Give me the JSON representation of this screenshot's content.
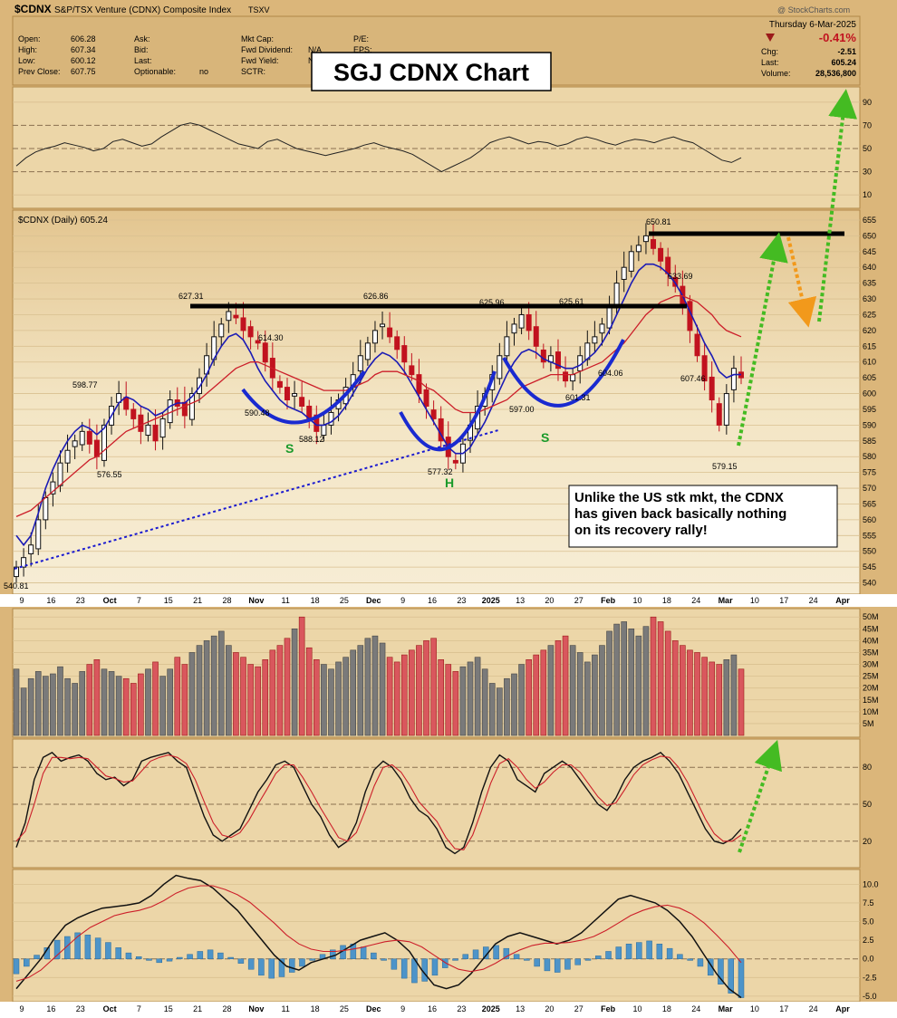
{
  "header": {
    "symbol": "$CDNX",
    "name": "S&P/TSX Venture (CDNX) Composite Index",
    "exchange": "TSXV",
    "watermark": "@ StockCharts.com",
    "date": "Thursday  6-Mar-2025",
    "change_pct": "-0.41%",
    "fields": [
      {
        "label": "Open:",
        "value": "606.28"
      },
      {
        "label": "High:",
        "value": "607.34"
      },
      {
        "label": "Low:",
        "value": "600.12"
      },
      {
        "label": "Prev Close:",
        "value": "607.75"
      }
    ],
    "fields2": [
      {
        "label": "Ask:",
        "value": ""
      },
      {
        "label": "Bid:",
        "value": ""
      },
      {
        "label": "Last:",
        "value": ""
      },
      {
        "label": "Optionable:",
        "value": "no"
      }
    ],
    "fields3": [
      {
        "label": "Mkt Cap:",
        "value": ""
      },
      {
        "label": "Fwd Dividend:",
        "value": "N/A"
      },
      {
        "label": "Fwd Yield:",
        "value": "N/A"
      },
      {
        "label": "SCTR:",
        "value": ""
      }
    ],
    "fields4": [
      {
        "label": "P/E:",
        "value": ""
      },
      {
        "label": "EPS:",
        "value": ""
      }
    ],
    "right_fields": [
      {
        "label": "Chg:",
        "value": "-2.51"
      },
      {
        "label": "Last:",
        "value": "605.24"
      },
      {
        "label": "Volume:",
        "value": "28,536,800"
      }
    ]
  },
  "overlay_title": "SGJ CDNX Chart",
  "price_legend": "$CDNX (Daily) 605.24",
  "annotation": "Unlike the US stk mkt, the CDNX has given back basically nothing on its recovery rally!",
  "pattern_labels": {
    "left_shoulder": "S",
    "head": "H",
    "right_shoulder": "S"
  },
  "x_axis_labels": [
    "9",
    "16",
    "23",
    "Oct",
    "7",
    "15",
    "21",
    "28",
    "Nov",
    "11",
    "18",
    "25",
    "Dec",
    "9",
    "16",
    "23",
    "2025",
    "13",
    "20",
    "27",
    "Feb",
    "10",
    "18",
    "24",
    "Mar",
    "10",
    "17",
    "24",
    "Apr"
  ],
  "chart_data": [
    {
      "type": "line",
      "panel": "rsi",
      "ylim": [
        0,
        100
      ],
      "y_ticks": [
        "90",
        "70",
        "50",
        "30",
        "10"
      ],
      "series": [
        {
          "values": [
            35,
            42,
            47,
            50,
            52,
            55,
            53,
            51,
            48,
            50,
            56,
            58,
            55,
            52,
            54,
            60,
            65,
            70,
            72,
            70,
            66,
            62,
            58,
            54,
            52,
            50,
            56,
            58,
            54,
            50,
            48,
            46,
            44,
            46,
            48,
            50,
            53,
            55,
            52,
            50,
            48,
            45,
            40,
            35,
            30,
            34,
            38,
            42,
            48,
            55,
            58,
            60,
            57,
            54,
            56,
            55,
            52,
            54,
            58,
            60,
            58,
            55,
            53,
            56,
            58,
            57,
            55,
            58,
            60,
            57,
            55,
            50,
            45,
            40,
            38,
            42
          ]
        }
      ]
    },
    {
      "type": "candlestick",
      "panel": "price",
      "ylim": [
        537,
        657
      ],
      "y_ticks": [
        "655",
        "650",
        "645",
        "640",
        "635",
        "630",
        "625",
        "620",
        "615",
        "610",
        "605",
        "600",
        "595",
        "590",
        "585",
        "580",
        "575",
        "570",
        "565",
        "560",
        "555",
        "550",
        "545",
        "540"
      ],
      "price_labels": [
        "650.81",
        "633.69",
        "627.31",
        "626.86",
        "625.96",
        "625.61",
        "614.30",
        "598.77",
        "607.46",
        "604.06",
        "601.31",
        "597.00",
        "590.48",
        "588.12",
        "577.32",
        "576.55",
        "579.15",
        "540.81"
      ],
      "close": [
        545,
        548,
        552,
        560,
        567,
        572,
        578,
        582,
        585,
        588,
        584,
        580,
        590,
        596,
        600,
        595,
        592,
        588,
        590,
        585,
        592,
        598,
        596,
        593,
        600,
        605,
        612,
        618,
        622,
        626,
        624,
        620,
        618,
        616,
        610,
        605,
        602,
        598,
        600,
        596,
        592,
        588,
        590,
        594,
        598,
        602,
        606,
        612,
        616,
        620,
        622,
        618,
        614,
        610,
        606,
        600,
        596,
        592,
        585,
        580,
        578,
        584,
        590,
        596,
        600,
        606,
        612,
        618,
        622,
        625,
        620,
        615,
        610,
        612,
        608,
        604,
        606,
        612,
        616,
        618,
        622,
        628,
        635,
        640,
        645,
        647,
        650,
        646,
        642,
        638,
        634,
        628,
        620,
        612,
        604,
        598,
        590,
        600,
        608,
        605
      ],
      "series": [
        {
          "name": "short-ma",
          "values": [
            555,
            552,
            555,
            562,
            570,
            576,
            581,
            585,
            588,
            590,
            589,
            587,
            589,
            593,
            597,
            599,
            598,
            596,
            595,
            593,
            594,
            596,
            597,
            597,
            599,
            602,
            606,
            611,
            615,
            618,
            619,
            617,
            613,
            608,
            604,
            601,
            598,
            596,
            595,
            594,
            592,
            590,
            590,
            591,
            593,
            596,
            600,
            604,
            608,
            611,
            613,
            612,
            610,
            607,
            603,
            599,
            595,
            591,
            587,
            583,
            581,
            581,
            583,
            587,
            591,
            596,
            601,
            606,
            610,
            613,
            614,
            613,
            611,
            610,
            609,
            608,
            608,
            609,
            611,
            613,
            616,
            620,
            625,
            630,
            635,
            639,
            641,
            641,
            640,
            638,
            635,
            631,
            626,
            621,
            616,
            612,
            607,
            605,
            606,
            606
          ]
        },
        {
          "name": "long-ma",
          "values": [
            561,
            562,
            563,
            565,
            567,
            569,
            571,
            573,
            575,
            577,
            579,
            580,
            582,
            584,
            586,
            588,
            589,
            590,
            591,
            592,
            593,
            594,
            595,
            596,
            597,
            598,
            600,
            602,
            604,
            606,
            608,
            609,
            610,
            610,
            609,
            608,
            607,
            606,
            605,
            604,
            603,
            602,
            601,
            601,
            601,
            601,
            602,
            603,
            604,
            606,
            607,
            607,
            607,
            606,
            605,
            604,
            602,
            601,
            599,
            597,
            595,
            594,
            594,
            594,
            595,
            596,
            597,
            598,
            600,
            602,
            603,
            604,
            605,
            606,
            606,
            606,
            606,
            607,
            608,
            609,
            610,
            612,
            614,
            616,
            619,
            622,
            625,
            627,
            629,
            630,
            631,
            631,
            630,
            629,
            627,
            625,
            622,
            620,
            619,
            618
          ]
        }
      ]
    },
    {
      "type": "bar",
      "panel": "volume",
      "ylim": [
        0,
        52
      ],
      "y_ticks": [
        "50M",
        "45M",
        "40M",
        "35M",
        "30M",
        "25M",
        "20M",
        "15M",
        "10M",
        "5M"
      ],
      "values": [
        28,
        20,
        24,
        27,
        25,
        26,
        29,
        24,
        22,
        27,
        30,
        32,
        28,
        27,
        25,
        24,
        22,
        26,
        28,
        31,
        25,
        28,
        33,
        30,
        35,
        38,
        40,
        42,
        44,
        38,
        35,
        33,
        30,
        29,
        32,
        36,
        38,
        41,
        45,
        50,
        37,
        32,
        30,
        28,
        31,
        33,
        36,
        38,
        41,
        42,
        39,
        33,
        31,
        34,
        36,
        38,
        40,
        41,
        32,
        30,
        27,
        29,
        31,
        33,
        28,
        22,
        20,
        24,
        26,
        30,
        32,
        34,
        36,
        38,
        40,
        42,
        38,
        35,
        31,
        34,
        38,
        44,
        47,
        48,
        45,
        42,
        46,
        50,
        48,
        44,
        40,
        38,
        36,
        35,
        33,
        31,
        30,
        32,
        34,
        28
      ]
    },
    {
      "type": "line",
      "panel": "stochastic",
      "ylim": [
        0,
        100
      ],
      "y_ticks": [
        "80",
        "50",
        "20"
      ],
      "series": [
        {
          "name": "fast",
          "values": [
            15,
            35,
            70,
            88,
            92,
            85,
            88,
            90,
            85,
            75,
            70,
            72,
            65,
            70,
            85,
            88,
            90,
            92,
            85,
            80,
            60,
            40,
            25,
            20,
            25,
            30,
            45,
            60,
            70,
            82,
            85,
            80,
            65,
            50,
            40,
            25,
            15,
            20,
            35,
            60,
            78,
            85,
            80,
            70,
            55,
            45,
            40,
            30,
            15,
            10,
            15,
            35,
            60,
            80,
            90,
            85,
            70,
            65,
            60,
            75,
            80,
            85,
            80,
            70,
            60,
            50,
            45,
            55,
            70,
            80,
            85,
            88,
            92,
            85,
            75,
            60,
            45,
            30,
            20,
            18,
            22,
            30
          ]
        },
        {
          "name": "slow",
          "values": [
            20,
            28,
            50,
            75,
            88,
            88,
            87,
            88,
            87,
            80,
            73,
            71,
            68,
            69,
            77,
            85,
            88,
            90,
            88,
            83,
            70,
            52,
            35,
            25,
            23,
            27,
            37,
            50,
            62,
            75,
            82,
            82,
            72,
            60,
            47,
            35,
            23,
            20,
            27,
            45,
            65,
            80,
            82,
            76,
            65,
            52,
            44,
            36,
            23,
            14,
            13,
            25,
            45,
            67,
            83,
            87,
            80,
            70,
            63,
            68,
            76,
            82,
            82,
            76,
            66,
            56,
            49,
            51,
            62,
            74,
            82,
            86,
            89,
            88,
            80,
            68,
            53,
            38,
            26,
            20,
            20,
            25
          ]
        }
      ]
    },
    {
      "type": "bar",
      "panel": "macd",
      "ylim": [
        -5.5,
        11.5
      ],
      "y_ticks": [
        "10.0",
        "7.5",
        "5.0",
        "2.5",
        "0.0",
        "-2.5",
        "-5.0"
      ],
      "values": [
        -2.0,
        -1.0,
        0.5,
        1.5,
        2.5,
        3.0,
        3.5,
        3.2,
        2.8,
        2.2,
        1.5,
        0.8,
        0.3,
        -0.2,
        -0.5,
        -0.3,
        0.2,
        0.6,
        1.0,
        1.2,
        0.8,
        0.2,
        -0.6,
        -1.4,
        -2.2,
        -2.6,
        -2.4,
        -1.8,
        -1.0,
        -0.2,
        0.6,
        1.2,
        1.8,
        2.0,
        1.6,
        0.8,
        -0.2,
        -1.4,
        -2.6,
        -3.2,
        -3.0,
        -2.2,
        -1.2,
        -0.2,
        0.6,
        1.2,
        1.6,
        1.8,
        1.4,
        0.6,
        -0.2,
        -1.0,
        -1.6,
        -1.8,
        -1.4,
        -0.8,
        -0.2,
        0.4,
        1.0,
        1.6,
        2.0,
        2.2,
        2.4,
        2.0,
        1.4,
        0.6,
        -0.2,
        -1.0,
        -2.2,
        -3.4,
        -4.6,
        -5.2
      ],
      "series": [
        {
          "name": "macd",
          "values": [
            -4.0,
            -2.0,
            0.0,
            2.5,
            4.5,
            5.5,
            6.2,
            6.8,
            7.0,
            7.2,
            7.5,
            8.5,
            10.0,
            11.2,
            10.8,
            10.5,
            9.5,
            8.0,
            6.5,
            4.5,
            2.5,
            0.5,
            -1.0,
            -1.5,
            -0.5,
            0.0,
            0.5,
            1.5,
            2.5,
            3.0,
            3.5,
            2.5,
            1.0,
            -1.5,
            -3.5,
            -4.0,
            -3.5,
            -2.0,
            0.0,
            2.0,
            3.0,
            3.5,
            3.0,
            2.5,
            2.0,
            2.5,
            3.5,
            5.0,
            6.5,
            8.0,
            8.5,
            8.0,
            7.5,
            6.5,
            5.0,
            3.0,
            0.5,
            -2.0,
            -4.0,
            -5.2
          ]
        },
        {
          "name": "signal",
          "values": [
            -3.0,
            -2.5,
            -1.5,
            0.0,
            1.5,
            3.0,
            4.2,
            5.0,
            5.8,
            6.2,
            6.5,
            7.0,
            7.8,
            8.8,
            9.5,
            9.8,
            9.8,
            9.3,
            8.6,
            7.6,
            6.2,
            4.8,
            3.2,
            2.0,
            1.3,
            1.0,
            1.0,
            1.2,
            1.5,
            1.9,
            2.3,
            2.5,
            2.3,
            1.6,
            0.5,
            -0.6,
            -1.4,
            -1.7,
            -1.4,
            -0.6,
            0.4,
            1.2,
            1.8,
            2.1,
            2.1,
            2.2,
            2.5,
            3.0,
            3.8,
            4.8,
            5.8,
            6.5,
            7.0,
            7.2,
            6.8,
            6.0,
            4.8,
            3.2,
            1.5,
            -0.5
          ]
        }
      ]
    }
  ]
}
